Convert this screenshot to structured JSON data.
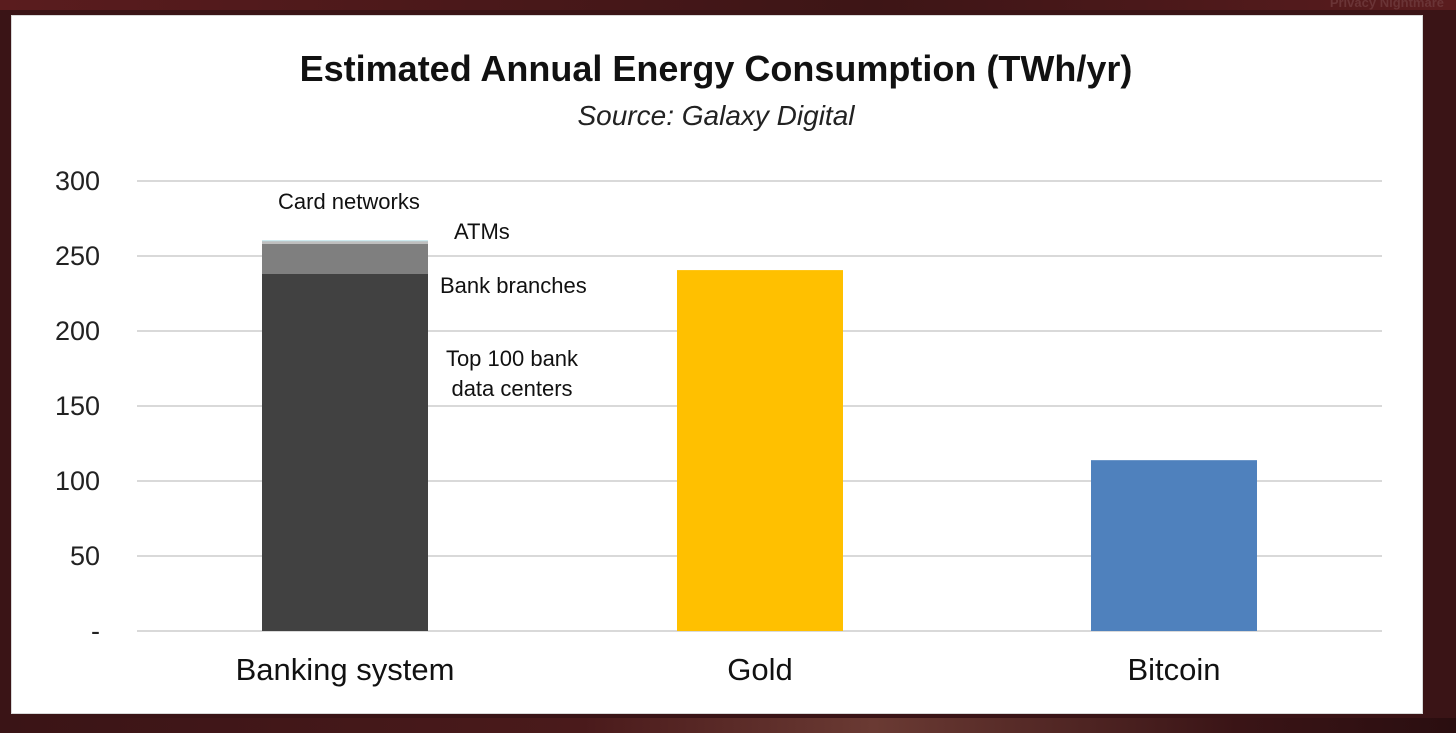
{
  "corner_text": "Privacy Nightmare",
  "colors": {
    "data_centers": "#414141",
    "bank_branches": "#7f7f7f",
    "atms": "#bfbfbf",
    "card_networks": "#bde3ea",
    "gold": "#ffc000",
    "bitcoin": "#4f81bd"
  },
  "chart_data": {
    "type": "bar",
    "stacked": true,
    "title": "Estimated Annual Energy Consumption (TWh/yr)",
    "subtitle": "Source: Galaxy Digital",
    "xlabel": "",
    "ylabel": "",
    "ylim": [
      0,
      300
    ],
    "yticks": [
      0,
      50,
      100,
      150,
      200,
      250,
      300
    ],
    "ytick_labels": [
      "-",
      "50",
      "100",
      "150",
      "200",
      "250",
      "300"
    ],
    "grid": true,
    "categories": [
      "Banking system",
      "Gold",
      "Bitcoin"
    ],
    "series": [
      {
        "name": "Top 100 bank data centers",
        "label_lines": [
          "Top 100 bank",
          "data centers"
        ],
        "color_key": "data_centers",
        "values": [
          238,
          0,
          0
        ]
      },
      {
        "name": "Bank branches",
        "label_lines": [
          "Bank branches"
        ],
        "color_key": "bank_branches",
        "values": [
          20,
          0,
          0
        ]
      },
      {
        "name": "ATMs",
        "label_lines": [
          "ATMs"
        ],
        "color_key": "atms",
        "values": [
          2,
          0,
          0
        ]
      },
      {
        "name": "Card networks",
        "label_lines": [
          "Card networks"
        ],
        "color_key": "card_networks",
        "values": [
          0.5,
          0,
          0
        ]
      },
      {
        "name": "Gold",
        "label_lines": [],
        "color_key": "gold",
        "values": [
          0,
          240.6,
          0
        ]
      },
      {
        "name": "Bitcoin",
        "label_lines": [],
        "color_key": "bitcoin",
        "values": [
          0,
          0,
          113.89
        ]
      }
    ]
  }
}
